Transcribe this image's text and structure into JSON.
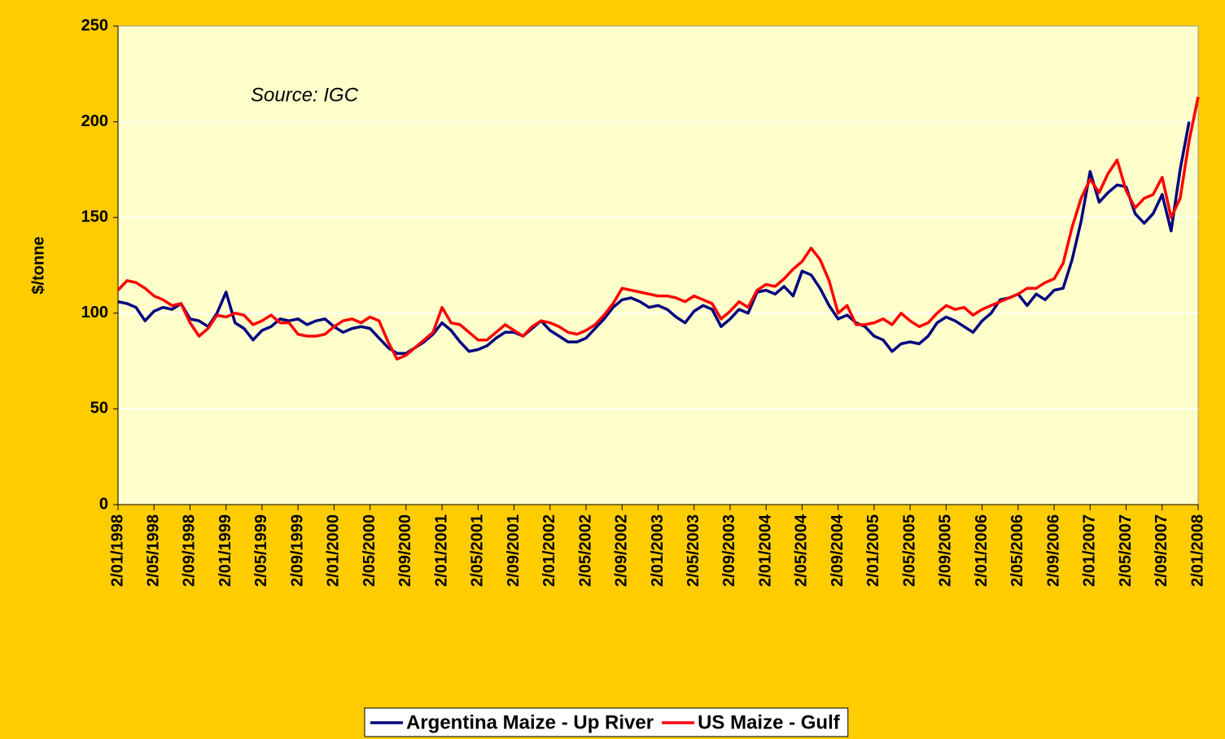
{
  "chart_data": {
    "type": "line",
    "ylabel": "$/tonne",
    "annotation": "Source: IGC",
    "categories": [
      "2/01/1998",
      null,
      null,
      null,
      "2/05/1998",
      null,
      null,
      null,
      "2/09/1998",
      null,
      null,
      null,
      "2/01/1999",
      null,
      null,
      null,
      "2/05/1999",
      null,
      null,
      null,
      "2/09/1999",
      null,
      null,
      null,
      "2/01/2000",
      null,
      null,
      null,
      "2/05/2000",
      null,
      null,
      null,
      "2/09/2000",
      null,
      null,
      null,
      "2/01/2001",
      null,
      null,
      null,
      "2/05/2001",
      null,
      null,
      null,
      "2/09/2001",
      null,
      null,
      null,
      "2/01/2002",
      null,
      null,
      null,
      "2/05/2002",
      null,
      null,
      null,
      "2/09/2002",
      null,
      null,
      null,
      "2/01/2003",
      null,
      null,
      null,
      "2/05/2003",
      null,
      null,
      null,
      "2/09/2003",
      null,
      null,
      null,
      "2/01/2004",
      null,
      null,
      null,
      "2/05/2004",
      null,
      null,
      null,
      "2/09/2004",
      null,
      null,
      null,
      "2/01/2005",
      null,
      null,
      null,
      "2/05/2005",
      null,
      null,
      null,
      "2/09/2005",
      null,
      null,
      null,
      "2/01/2006",
      null,
      null,
      null,
      "2/05/2006",
      null,
      null,
      null,
      "2/09/2006",
      null,
      null,
      null,
      "2/01/2007",
      null,
      null,
      null,
      "2/05/2007",
      null,
      null,
      null,
      "2/09/2007",
      null,
      null,
      null,
      "2/01/2008"
    ],
    "series": [
      {
        "name": "Argentina Maize - Up River",
        "color": "#000080",
        "values": [
          106,
          105,
          103,
          96,
          101,
          103,
          102,
          105,
          97,
          96,
          93,
          100,
          111,
          95,
          92,
          86,
          91,
          93,
          97,
          96,
          97,
          94,
          96,
          97,
          93,
          90,
          92,
          93,
          92,
          87,
          82,
          79,
          79,
          82,
          85,
          89,
          95,
          91,
          85,
          80,
          81,
          83,
          87,
          90,
          90,
          88,
          92,
          96,
          91,
          88,
          85,
          85,
          87,
          92,
          97,
          103,
          107,
          108,
          106,
          103,
          104,
          102,
          98,
          95,
          101,
          104,
          102,
          93,
          97,
          102,
          100,
          111,
          112,
          110,
          114,
          109,
          122,
          120,
          113,
          104,
          97,
          99,
          95,
          93,
          88,
          86,
          80,
          84,
          85,
          84,
          88,
          95,
          98,
          96,
          93,
          90,
          96,
          100,
          107,
          108,
          110,
          104,
          110,
          107,
          112,
          113,
          128,
          148,
          174,
          158,
          163,
          167,
          166,
          152,
          147,
          152,
          162,
          143,
          175,
          200,
          null
        ]
      },
      {
        "name": "US Maize - Gulf",
        "color": "#ff0000",
        "values": [
          112,
          117,
          116,
          113,
          109,
          107,
          104,
          105,
          95,
          88,
          92,
          99,
          98,
          100,
          99,
          94,
          96,
          99,
          95,
          95,
          89,
          88,
          88,
          89,
          93,
          96,
          97,
          95,
          98,
          96,
          85,
          76,
          78,
          82,
          86,
          90,
          103,
          95,
          94,
          90,
          86,
          86,
          90,
          94,
          91,
          88,
          93,
          96,
          95,
          93,
          90,
          89,
          91,
          94,
          99,
          105,
          113,
          112,
          111,
          110,
          109,
          109,
          108,
          106,
          109,
          107,
          105,
          97,
          101,
          106,
          103,
          112,
          115,
          114,
          118,
          123,
          127,
          134,
          128,
          117,
          100,
          104,
          94,
          94,
          95,
          97,
          94,
          100,
          96,
          93,
          95,
          100,
          104,
          102,
          103,
          99,
          102,
          104,
          106,
          108,
          110,
          113,
          113,
          116,
          118,
          126,
          145,
          160,
          170,
          163,
          173,
          180,
          164,
          155,
          160,
          162,
          171,
          150,
          160,
          190,
          213
        ]
      }
    ],
    "ylim": [
      0,
      250
    ],
    "yticks": [
      0,
      50,
      100,
      150,
      200,
      250
    ],
    "grid": true,
    "legend": "bottom"
  }
}
